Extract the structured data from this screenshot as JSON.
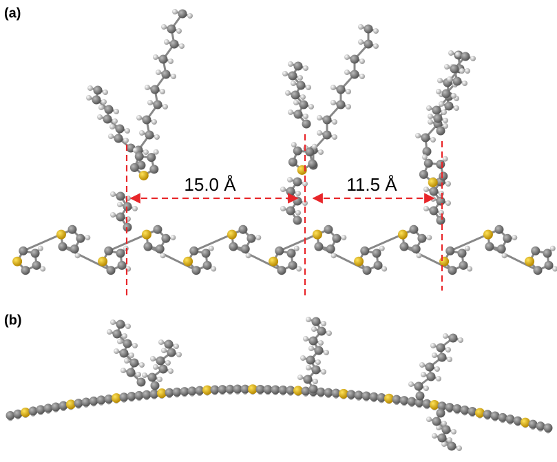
{
  "panels": [
    {
      "label": "(a)",
      "distances": [
        "15.0 Å",
        "11.5 Å"
      ]
    },
    {
      "label": "(b)"
    }
  ]
}
